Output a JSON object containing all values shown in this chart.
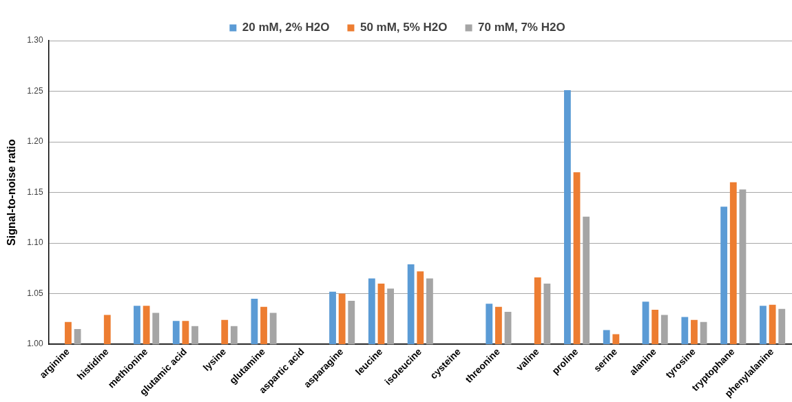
{
  "chart_data": {
    "type": "bar",
    "ylabel": "Signal-to-noise ratio",
    "categories": [
      "arginine",
      "histidine",
      "methionine",
      "glutamic acid",
      "lysine",
      "glutamine",
      "aspartic acid",
      "asparagine",
      "leucine",
      "isoleucine",
      "cysteine",
      "threonine",
      "valine",
      "proline",
      "serine",
      "alanine",
      "tyrosine",
      "tryptophane",
      "phenylalanine"
    ],
    "series": [
      {
        "name": "20 mM, 2% H2O",
        "color": "#5b9bd5",
        "values": [
          null,
          null,
          1.038,
          1.023,
          null,
          1.045,
          null,
          1.052,
          1.065,
          1.079,
          null,
          1.04,
          null,
          1.251,
          1.014,
          1.042,
          1.027,
          1.136,
          1.038
        ]
      },
      {
        "name": "50 mM, 5% H2O",
        "color": "#ed7d31",
        "values": [
          1.022,
          1.029,
          1.038,
          1.023,
          1.024,
          1.037,
          null,
          1.05,
          1.06,
          1.072,
          null,
          1.037,
          1.066,
          1.17,
          1.01,
          1.034,
          1.024,
          1.16,
          1.039
        ]
      },
      {
        "name": "70 mM, 7% H2O",
        "color": "#a5a5a5",
        "values": [
          1.015,
          null,
          1.031,
          1.018,
          1.018,
          1.031,
          null,
          1.043,
          1.055,
          1.065,
          null,
          1.032,
          1.06,
          1.126,
          null,
          1.029,
          1.022,
          1.153,
          1.035
        ]
      }
    ],
    "ylim": [
      1.0,
      1.3
    ],
    "yticks": [
      {
        "value": 1.0,
        "label": "1.00"
      },
      {
        "value": 1.05,
        "label": "1.05"
      },
      {
        "value": 1.1,
        "label": "1.10"
      },
      {
        "value": 1.15,
        "label": "1.15"
      },
      {
        "value": 1.2,
        "label": "1.20"
      },
      {
        "value": 1.25,
        "label": "1.25"
      },
      {
        "value": 1.3,
        "label": "1.30"
      }
    ],
    "grid": "y",
    "legend": "top"
  }
}
